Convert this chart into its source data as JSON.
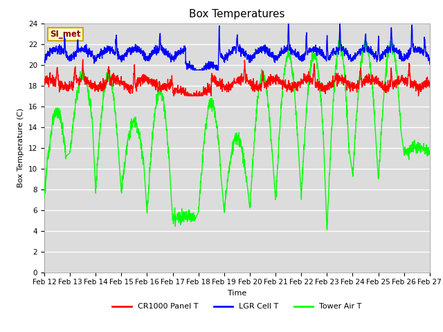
{
  "title": "Box Temperatures",
  "xlabel": "Time",
  "ylabel": "Box Temperature (C)",
  "ylim": [
    0,
    24
  ],
  "yticks": [
    0,
    2,
    4,
    6,
    8,
    10,
    12,
    14,
    16,
    18,
    20,
    22,
    24
  ],
  "x_labels": [
    "Feb 12",
    "Feb 13",
    "Feb 14",
    "Feb 15",
    "Feb 16",
    "Feb 17",
    "Feb 18",
    "Feb 19",
    "Feb 20",
    "Feb 21",
    "Feb 22",
    "Feb 23",
    "Feb 24",
    "Feb 25",
    "Feb 26",
    "Feb 27"
  ],
  "color_cr1000": "#FF0000",
  "color_lgr": "#0000FF",
  "color_tower": "#00FF00",
  "bg_plot": "#DCDCDC",
  "bg_figure": "#FFFFFF",
  "watermark_text": "SI_met",
  "watermark_color": "#8B0000",
  "watermark_bg": "#FFFACD",
  "watermark_edge": "#CCAA00",
  "legend_labels": [
    "CR1000 Panel T",
    "LGR Cell T",
    "Tower Air T"
  ],
  "linewidth": 1.0,
  "title_fontsize": 11,
  "axis_label_fontsize": 8,
  "tick_fontsize": 7.5
}
